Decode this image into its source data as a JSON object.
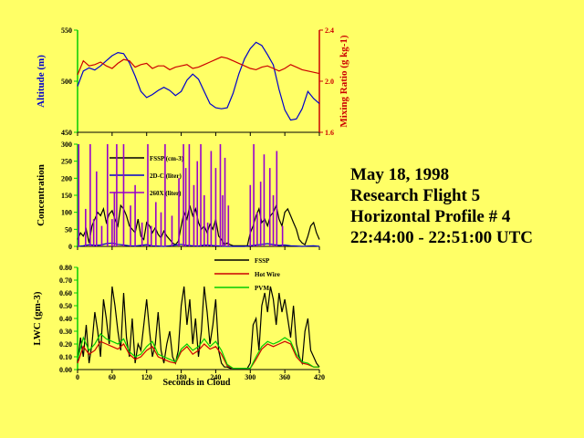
{
  "info": {
    "date": "May 18, 1998",
    "flight": "Research Flight 5",
    "profile": "Horizontal Profile # 4",
    "time_range": "22:44:00 - 22:51:00 UTC"
  },
  "colors": {
    "background": "#ffff66",
    "blue": "#0000cc",
    "red": "#cc0000",
    "green": "#00cc00",
    "purple": "#9900cc",
    "black": "#000000"
  },
  "chart_data": [
    {
      "type": "line",
      "name": "altitude-mixing",
      "xlim": [
        0,
        420
      ],
      "ylabel": "Altitude (m)",
      "ylim": [
        450,
        550
      ],
      "yticks": [
        "450",
        "500",
        "550"
      ],
      "y2label": "Mixing Ratio (g kg-1)",
      "y2lim": [
        1.6,
        2.4
      ],
      "y2ticks": [
        "1.6",
        "2.0",
        "2.4"
      ],
      "series": [
        {
          "color": "#0000cc",
          "axis": "left",
          "x": [
            0,
            10,
            20,
            30,
            40,
            50,
            60,
            70,
            80,
            90,
            100,
            110,
            120,
            130,
            140,
            150,
            160,
            170,
            180,
            190,
            200,
            210,
            220,
            230,
            240,
            250,
            260,
            270,
            280,
            290,
            300,
            310,
            320,
            330,
            340,
            350,
            360,
            370,
            380,
            390,
            400,
            410,
            420
          ],
          "y": [
            495,
            510,
            513,
            511,
            515,
            520,
            525,
            528,
            527,
            518,
            505,
            490,
            484,
            487,
            491,
            494,
            491,
            486,
            490,
            501,
            507,
            502,
            490,
            478,
            474,
            473,
            474,
            488,
            507,
            522,
            532,
            538,
            535,
            526,
            516,
            492,
            472,
            462,
            463,
            473,
            490,
            483,
            478
          ]
        },
        {
          "color": "#cc0000",
          "axis": "right",
          "x": [
            0,
            10,
            20,
            30,
            40,
            50,
            60,
            70,
            80,
            90,
            100,
            110,
            120,
            130,
            140,
            150,
            160,
            170,
            180,
            190,
            200,
            210,
            220,
            230,
            240,
            250,
            260,
            270,
            280,
            290,
            300,
            310,
            320,
            330,
            340,
            350,
            360,
            370,
            380,
            390,
            400,
            410,
            420
          ],
          "y": [
            2.05,
            2.16,
            2.12,
            2.13,
            2.15,
            2.12,
            2.1,
            2.14,
            2.17,
            2.16,
            2.11,
            2.13,
            2.14,
            2.1,
            2.12,
            2.12,
            2.09,
            2.11,
            2.12,
            2.13,
            2.1,
            2.11,
            2.13,
            2.15,
            2.17,
            2.19,
            2.18,
            2.16,
            2.14,
            2.12,
            2.1,
            2.09,
            2.11,
            2.12,
            2.1,
            2.08,
            2.1,
            2.13,
            2.11,
            2.09,
            2.08,
            2.07,
            2.06
          ]
        }
      ]
    },
    {
      "type": "line",
      "name": "concentration",
      "xlim": [
        0,
        420
      ],
      "ylabel": "Concentration",
      "ylim": [
        0,
        300
      ],
      "yticks": [
        "0",
        "50",
        "100",
        "150",
        "200",
        "250",
        "300"
      ],
      "series": [
        {
          "name": "FSSP (cm-3)",
          "color": "#000000",
          "x": [
            0,
            5,
            10,
            15,
            20,
            25,
            30,
            35,
            40,
            45,
            50,
            55,
            60,
            65,
            70,
            75,
            80,
            85,
            90,
            95,
            100,
            105,
            110,
            115,
            120,
            125,
            130,
            135,
            140,
            145,
            150,
            155,
            160,
            165,
            170,
            175,
            180,
            185,
            190,
            195,
            200,
            205,
            210,
            215,
            220,
            225,
            230,
            235,
            240,
            245,
            250,
            255,
            260,
            265,
            270,
            275,
            280,
            285,
            290,
            295,
            300,
            305,
            310,
            315,
            320,
            325,
            330,
            335,
            340,
            345,
            350,
            355,
            360,
            365,
            370,
            375,
            380,
            385,
            390,
            395,
            400,
            405,
            410,
            415,
            420
          ],
          "y": [
            20,
            40,
            30,
            50,
            10,
            60,
            80,
            100,
            90,
            110,
            70,
            95,
            105,
            80,
            60,
            120,
            110,
            90,
            60,
            50,
            40,
            80,
            30,
            20,
            70,
            60,
            40,
            55,
            35,
            25,
            45,
            30,
            20,
            10,
            5,
            15,
            60,
            100,
            80,
            120,
            90,
            110,
            70,
            50,
            60,
            40,
            65,
            50,
            80,
            30,
            20,
            5,
            10,
            5,
            2,
            2,
            2,
            2,
            2,
            2,
            40,
            60,
            90,
            110,
            70,
            80,
            60,
            90,
            100,
            120,
            80,
            60,
            100,
            110,
            90,
            70,
            50,
            20,
            10,
            5,
            30,
            60,
            70,
            40,
            20
          ]
        },
        {
          "name": "2D-C (liter)",
          "color": "#0000cc",
          "x": [
            0,
            10,
            20,
            30,
            40,
            50,
            60,
            70,
            80,
            90,
            100,
            110,
            120,
            130,
            140,
            150,
            160,
            170,
            180,
            190,
            200,
            210,
            220,
            230,
            240,
            250,
            260,
            270,
            280,
            290,
            300,
            310,
            320,
            330,
            340,
            350,
            360,
            370,
            380,
            390,
            400,
            410,
            420
          ],
          "y": [
            0,
            2,
            5,
            3,
            4,
            8,
            10,
            6,
            4,
            2,
            1,
            3,
            5,
            2,
            1,
            0,
            2,
            4,
            6,
            3,
            2,
            1,
            4,
            3,
            2,
            1,
            0,
            0,
            0,
            0,
            2,
            4,
            6,
            8,
            5,
            3,
            4,
            2,
            1,
            0,
            1,
            2,
            0
          ]
        },
        {
          "name": "260X (liter)",
          "color": "#9900cc",
          "style": "spikes",
          "x": [
            2,
            14,
            22,
            28,
            33,
            42,
            52,
            60,
            64,
            68,
            80,
            92,
            100,
            112,
            122,
            128,
            136,
            145,
            152,
            164,
            176,
            184,
            188,
            194,
            202,
            208,
            214,
            220,
            226,
            232,
            240,
            248,
            252,
            256,
            262,
            300,
            306,
            312,
            318,
            324,
            334,
            340,
            346,
            356
          ],
          "y": [
            300,
            110,
            300,
            80,
            220,
            60,
            300,
            80,
            160,
            300,
            300,
            120,
            180,
            70,
            300,
            60,
            130,
            100,
            300,
            90,
            200,
            300,
            230,
            300,
            180,
            250,
            300,
            150,
            70,
            280,
            230,
            300,
            150,
            260,
            120,
            180,
            300,
            100,
            190,
            270,
            230,
            150,
            280,
            60
          ]
        }
      ]
    },
    {
      "type": "line",
      "name": "lwc",
      "xlabel": "Seconds in Cloud",
      "xlim": [
        0,
        420
      ],
      "xticks": [
        "0",
        "60",
        "120",
        "180",
        "240",
        "300",
        "360",
        "420"
      ],
      "ylabel": "LWC (gm-3)",
      "ylim": [
        0,
        0.8
      ],
      "yticks": [
        "0.00",
        "0.10",
        "0.20",
        "0.30",
        "0.40",
        "0.50",
        "0.60",
        "0.70",
        "0.80"
      ],
      "series": [
        {
          "name": "FSSP",
          "color": "#000000",
          "x": [
            0,
            5,
            10,
            15,
            20,
            25,
            30,
            35,
            40,
            45,
            50,
            55,
            60,
            65,
            70,
            75,
            80,
            85,
            90,
            95,
            100,
            105,
            110,
            115,
            120,
            125,
            130,
            135,
            140,
            145,
            150,
            155,
            160,
            165,
            170,
            175,
            180,
            185,
            190,
            195,
            200,
            205,
            210,
            215,
            220,
            225,
            230,
            235,
            240,
            245,
            250,
            255,
            260,
            265,
            270,
            275,
            280,
            285,
            290,
            295,
            300,
            305,
            310,
            315,
            320,
            325,
            330,
            335,
            340,
            345,
            350,
            355,
            360,
            365,
            370,
            375,
            380,
            385,
            390,
            395,
            400,
            405,
            410,
            415,
            420
          ],
          "y": [
            0.05,
            0.25,
            0.1,
            0.35,
            0.05,
            0.2,
            0.45,
            0.3,
            0.1,
            0.55,
            0.4,
            0.2,
            0.65,
            0.5,
            0.3,
            0.15,
            0.6,
            0.25,
            0.1,
            0.4,
            0.05,
            0.2,
            0.15,
            0.35,
            0.55,
            0.3,
            0.1,
            0.2,
            0.45,
            0.15,
            0.05,
            0.2,
            0.3,
            0.1,
            0.05,
            0.15,
            0.5,
            0.65,
            0.35,
            0.55,
            0.2,
            0.4,
            0.1,
            0.3,
            0.65,
            0.45,
            0.2,
            0.35,
            0.55,
            0.15,
            0.05,
            0.02,
            0.02,
            0.01,
            0.01,
            0.01,
            0.01,
            0.01,
            0.01,
            0.01,
            0.05,
            0.35,
            0.4,
            0.15,
            0.5,
            0.6,
            0.45,
            0.65,
            0.55,
            0.35,
            0.6,
            0.45,
            0.55,
            0.4,
            0.25,
            0.5,
            0.2,
            0.1,
            0.05,
            0.3,
            0.4,
            0.15,
            0.1,
            0.05,
            0.02
          ]
        },
        {
          "name": "Hot Wire",
          "color": "#cc0000",
          "x": [
            0,
            10,
            20,
            30,
            40,
            50,
            60,
            70,
            80,
            90,
            100,
            110,
            120,
            130,
            140,
            150,
            160,
            170,
            180,
            190,
            200,
            210,
            220,
            230,
            240,
            250,
            260,
            270,
            280,
            290,
            300,
            310,
            320,
            330,
            340,
            350,
            360,
            370,
            380,
            390,
            400,
            410,
            420
          ],
          "y": [
            0.05,
            0.18,
            0.12,
            0.15,
            0.22,
            0.2,
            0.18,
            0.16,
            0.2,
            0.12,
            0.08,
            0.1,
            0.15,
            0.18,
            0.1,
            0.08,
            0.06,
            0.05,
            0.14,
            0.18,
            0.12,
            0.15,
            0.2,
            0.16,
            0.18,
            0.12,
            0.03,
            0.01,
            0.01,
            0.01,
            0.01,
            0.08,
            0.16,
            0.2,
            0.18,
            0.2,
            0.22,
            0.2,
            0.1,
            0.05,
            0.04,
            0.02,
            0.02
          ]
        },
        {
          "name": "PVM",
          "color": "#00cc00",
          "x": [
            0,
            10,
            20,
            30,
            40,
            50,
            60,
            70,
            80,
            90,
            100,
            110,
            120,
            130,
            140,
            150,
            160,
            170,
            180,
            190,
            200,
            210,
            220,
            230,
            240,
            250,
            260,
            270,
            280,
            290,
            300,
            310,
            320,
            330,
            340,
            350,
            360,
            370,
            380,
            390,
            400,
            410,
            420
          ],
          "y": [
            0.08,
            0.25,
            0.15,
            0.2,
            0.28,
            0.24,
            0.22,
            0.2,
            0.24,
            0.14,
            0.1,
            0.12,
            0.18,
            0.22,
            0.12,
            0.1,
            0.08,
            0.06,
            0.16,
            0.2,
            0.15,
            0.18,
            0.24,
            0.18,
            0.22,
            0.15,
            0.04,
            0.01,
            0.01,
            0.01,
            0.01,
            0.1,
            0.18,
            0.22,
            0.2,
            0.22,
            0.25,
            0.22,
            0.12,
            0.06,
            0.05,
            0.02,
            0.02
          ]
        }
      ]
    }
  ]
}
